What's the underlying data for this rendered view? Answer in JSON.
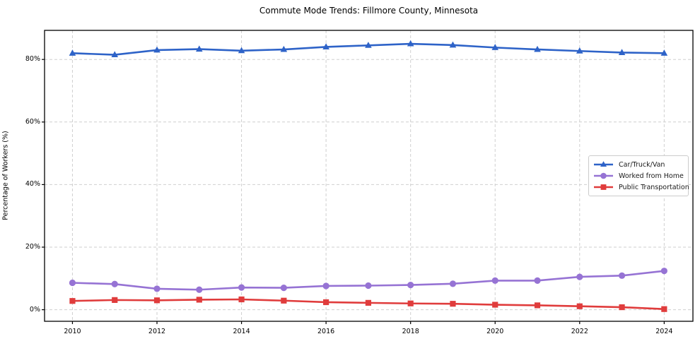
{
  "title": "Commute Mode Trends: Fillmore County, Minnesota",
  "axes": {
    "y_label": "Percentage of Workers (%)",
    "x_label": ""
  },
  "colors": {
    "car_truck_van": "#2e63c8",
    "worked_from_home": "#9673d4",
    "public_transportation": "#e03c3c",
    "grid": "#cfcfcf",
    "spine": "#000000",
    "legend_border": "#cccccc",
    "background": "#ffffff"
  },
  "chart_data": {
    "type": "line",
    "title": "Commute Mode Trends: Fillmore County, Minnesota",
    "xlabel": "",
    "ylabel": "Percentage of Workers (%)",
    "x": [
      2010,
      2011,
      2012,
      2013,
      2014,
      2015,
      2016,
      2017,
      2018,
      2019,
      2020,
      2021,
      2022,
      2023,
      2024
    ],
    "series": [
      {
        "name": "Car/Truck/Van",
        "color": "#2e63c8",
        "marker": "triangle",
        "values": [
          82.0,
          81.5,
          83.0,
          83.3,
          82.8,
          83.2,
          84.0,
          84.5,
          85.0,
          84.6,
          83.8,
          83.2,
          82.7,
          82.2,
          82.0
        ]
      },
      {
        "name": "Worked from Home",
        "color": "#9673d4",
        "marker": "circle",
        "values": [
          8.6,
          8.2,
          6.7,
          6.4,
          7.1,
          7.0,
          7.6,
          7.7,
          7.9,
          8.3,
          9.3,
          9.3,
          10.5,
          10.9,
          12.4
        ]
      },
      {
        "name": "Public Transportation",
        "color": "#e03c3c",
        "marker": "square",
        "values": [
          2.8,
          3.1,
          3.0,
          3.2,
          3.3,
          2.9,
          2.4,
          2.2,
          2.0,
          1.9,
          1.6,
          1.4,
          1.1,
          0.8,
          0.2
        ]
      }
    ],
    "xlim": [
      2009.34,
      2024.68
    ],
    "ylim": [
      -3.7,
      89.3
    ],
    "xticks": [
      2010,
      2012,
      2014,
      2016,
      2018,
      2020,
      2022,
      2024
    ],
    "xtick_labels": [
      "2010",
      "2012",
      "2014",
      "2016",
      "2018",
      "2020",
      "2022",
      "2024"
    ],
    "yticks": [
      0,
      20,
      40,
      60,
      80
    ],
    "ytick_labels": [
      "0%",
      "20%",
      "40%",
      "60%",
      "80%"
    ],
    "grid": true,
    "grid_style": "dashed",
    "legend_position": "center right"
  }
}
